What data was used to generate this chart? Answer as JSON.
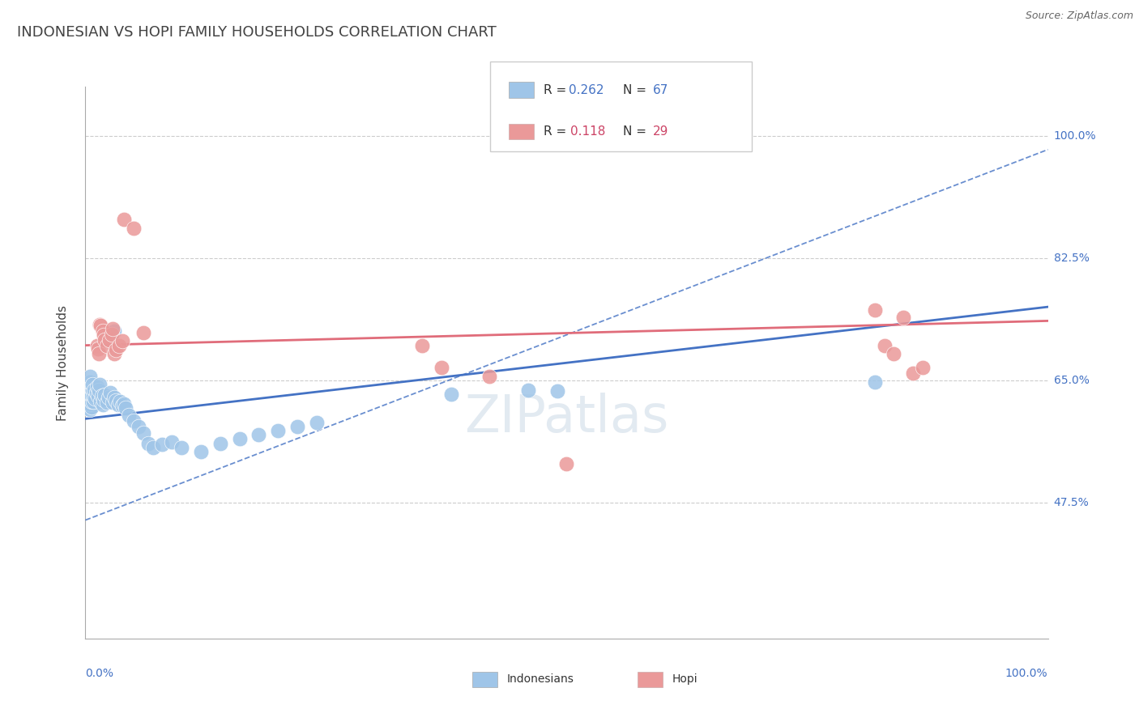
{
  "title": "INDONESIAN VS HOPI FAMILY HOUSEHOLDS CORRELATION CHART",
  "source": "Source: ZipAtlas.com",
  "ylabel": "Family Households",
  "ytick_labels": [
    "47.5%",
    "65.0%",
    "82.5%",
    "100.0%"
  ],
  "ytick_values": [
    0.475,
    0.65,
    0.825,
    1.0
  ],
  "xlim": [
    0.0,
    1.0
  ],
  "ylim": [
    0.28,
    1.07
  ],
  "indonesian_dots": [
    [
      0.003,
      0.615
    ],
    [
      0.003,
      0.622
    ],
    [
      0.003,
      0.63
    ],
    [
      0.003,
      0.638
    ],
    [
      0.004,
      0.61
    ],
    [
      0.004,
      0.618
    ],
    [
      0.004,
      0.626
    ],
    [
      0.004,
      0.633
    ],
    [
      0.004,
      0.641
    ],
    [
      0.005,
      0.608
    ],
    [
      0.005,
      0.616
    ],
    [
      0.005,
      0.624
    ],
    [
      0.005,
      0.632
    ],
    [
      0.005,
      0.64
    ],
    [
      0.005,
      0.648
    ],
    [
      0.005,
      0.656
    ],
    [
      0.006,
      0.612
    ],
    [
      0.006,
      0.62
    ],
    [
      0.006,
      0.628
    ],
    [
      0.007,
      0.636
    ],
    [
      0.007,
      0.644
    ],
    [
      0.008,
      0.62
    ],
    [
      0.008,
      0.628
    ],
    [
      0.009,
      0.636
    ],
    [
      0.01,
      0.624
    ],
    [
      0.011,
      0.632
    ],
    [
      0.012,
      0.64
    ],
    [
      0.013,
      0.628
    ],
    [
      0.014,
      0.636
    ],
    [
      0.015,
      0.644
    ],
    [
      0.016,
      0.62
    ],
    [
      0.017,
      0.628
    ],
    [
      0.018,
      0.615
    ],
    [
      0.019,
      0.622
    ],
    [
      0.02,
      0.629
    ],
    [
      0.022,
      0.618
    ],
    [
      0.024,
      0.625
    ],
    [
      0.026,
      0.632
    ],
    [
      0.028,
      0.619
    ],
    [
      0.03,
      0.626
    ],
    [
      0.032,
      0.621
    ],
    [
      0.034,
      0.615
    ],
    [
      0.036,
      0.62
    ],
    [
      0.038,
      0.614
    ],
    [
      0.04,
      0.616
    ],
    [
      0.042,
      0.61
    ],
    [
      0.045,
      0.6
    ],
    [
      0.05,
      0.592
    ],
    [
      0.055,
      0.584
    ],
    [
      0.06,
      0.574
    ],
    [
      0.065,
      0.56
    ],
    [
      0.07,
      0.554
    ],
    [
      0.08,
      0.558
    ],
    [
      0.09,
      0.562
    ],
    [
      0.1,
      0.554
    ],
    [
      0.12,
      0.548
    ],
    [
      0.14,
      0.56
    ],
    [
      0.16,
      0.566
    ],
    [
      0.18,
      0.572
    ],
    [
      0.2,
      0.578
    ],
    [
      0.22,
      0.584
    ],
    [
      0.24,
      0.59
    ],
    [
      0.03,
      0.72
    ],
    [
      0.38,
      0.63
    ],
    [
      0.46,
      0.636
    ],
    [
      0.49,
      0.635
    ],
    [
      0.82,
      0.648
    ]
  ],
  "hopi_dots": [
    [
      0.012,
      0.7
    ],
    [
      0.013,
      0.695
    ],
    [
      0.014,
      0.688
    ],
    [
      0.015,
      0.73
    ],
    [
      0.016,
      0.728
    ],
    [
      0.018,
      0.72
    ],
    [
      0.019,
      0.715
    ],
    [
      0.02,
      0.708
    ],
    [
      0.022,
      0.7
    ],
    [
      0.025,
      0.708
    ],
    [
      0.027,
      0.716
    ],
    [
      0.028,
      0.724
    ],
    [
      0.03,
      0.688
    ],
    [
      0.032,
      0.694
    ],
    [
      0.035,
      0.7
    ],
    [
      0.038,
      0.706
    ],
    [
      0.04,
      0.88
    ],
    [
      0.05,
      0.868
    ],
    [
      0.06,
      0.718
    ],
    [
      0.35,
      0.7
    ],
    [
      0.37,
      0.668
    ],
    [
      0.42,
      0.656
    ],
    [
      0.5,
      0.53
    ],
    [
      0.82,
      0.75
    ],
    [
      0.83,
      0.7
    ],
    [
      0.84,
      0.688
    ],
    [
      0.85,
      0.74
    ],
    [
      0.86,
      0.66
    ],
    [
      0.87,
      0.668
    ]
  ],
  "indonesian_color": "#9fc5e8",
  "hopi_color": "#ea9999",
  "indonesian_line_color": "#4472c4",
  "hopi_line_color": "#e06c7a",
  "background_color": "#ffffff",
  "grid_color": "#cccccc",
  "title_color": "#434343",
  "source_color": "#666666",
  "axis_label_color": "#4472c4",
  "legend_r_blue_color": "#4472c4",
  "legend_n_blue_color": "#4472c4",
  "legend_r_pink_color": "#cc4466",
  "legend_n_pink_color": "#cc4466"
}
